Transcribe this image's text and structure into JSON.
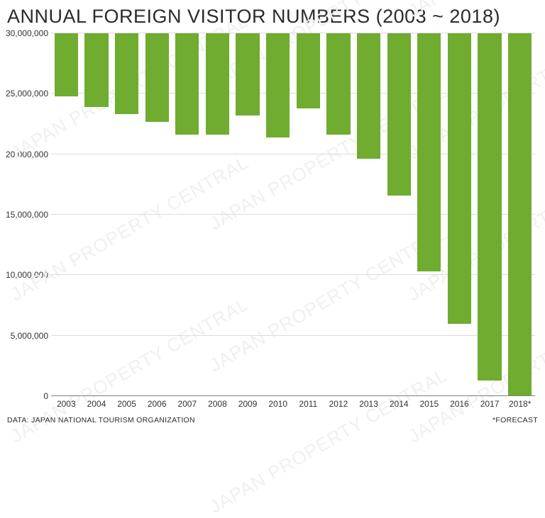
{
  "chart": {
    "type": "bar",
    "title": "ANNUAL FOREIGN VISITOR NUMBERS (2003 ~ 2018)",
    "title_fontsize": 27,
    "title_color": "#2b2b2b",
    "background_color": "#ffffff",
    "bar_color": "#6fac2f",
    "grid_color": "#dcdcdc",
    "baseline_color": "#808080",
    "watermark_text": "JAPAN PROPERTY CENTRAL",
    "watermark_color": "#f0f0f0",
    "bar_width_ratio": 0.78,
    "ylim": [
      0,
      30000000
    ],
    "ytick_step": 5000000,
    "y_ticks": [
      {
        "value": 0,
        "label": "0"
      },
      {
        "value": 5000000,
        "label": "5,000,000"
      },
      {
        "value": 10000000,
        "label": "10,000,000"
      },
      {
        "value": 15000000,
        "label": "15,000,000"
      },
      {
        "value": 20000000,
        "label": "20,000,000"
      },
      {
        "value": 25000000,
        "label": "25,000,000"
      },
      {
        "value": 30000000,
        "label": "30,000,000"
      }
    ],
    "categories": [
      "2003",
      "2004",
      "2005",
      "2006",
      "2007",
      "2008",
      "2009",
      "2010",
      "2011",
      "2012",
      "2013",
      "2014",
      "2015",
      "2016",
      "2017",
      "2018*"
    ],
    "values": [
      5200000,
      6100000,
      6700000,
      7300000,
      8400000,
      8400000,
      6800000,
      8600000,
      6200000,
      8400000,
      10400000,
      13400000,
      19700000,
      24000000,
      28700000,
      30000000
    ],
    "axis_label_fontsize": 12,
    "axis_label_color": "#333333"
  },
  "footer": {
    "source": "DATA: JAPAN NATIONAL TOURISM ORGANIZATION",
    "note": "*FORECAST",
    "fontsize": 10.5,
    "color": "#2b2b2b"
  }
}
